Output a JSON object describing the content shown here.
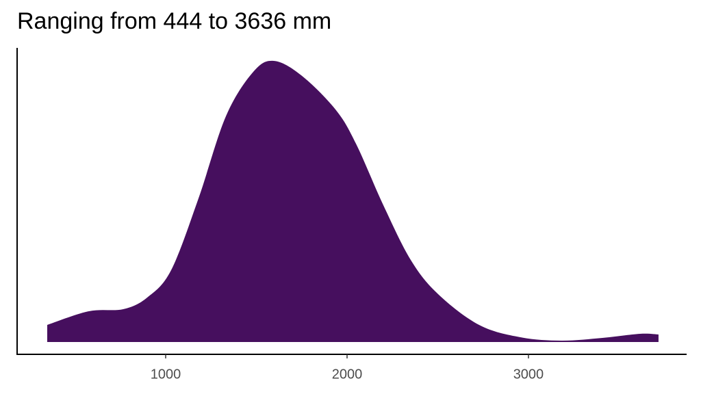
{
  "chart_data": {
    "type": "area",
    "title": "Ranging from 444 to 3636 mm",
    "x": [
      347,
      577,
      766,
      898,
      1030,
      1181,
      1332,
      1483,
      1596,
      1747,
      1936,
      2049,
      2200,
      2351,
      2502,
      2728,
      2955,
      3181,
      3408,
      3615,
      3717
    ],
    "values": [
      5e-05,
      9e-05,
      9.6e-05,
      0.00013,
      0.00021,
      0.00042,
      0.00066,
      0.00079,
      0.000822,
      0.00078,
      0.00068,
      0.00058,
      0.0004,
      0.00024,
      0.00014,
      5e-05,
      1.4e-05,
      4e-06,
      1.2e-05,
      2.4e-05,
      2.2e-05
    ],
    "color": "#460f5e",
    "xlim": [
      181,
      3872
    ],
    "xticks": [
      1000,
      2000,
      3000
    ],
    "ylim": [
      -3.6e-05,
      0.00086
    ]
  }
}
